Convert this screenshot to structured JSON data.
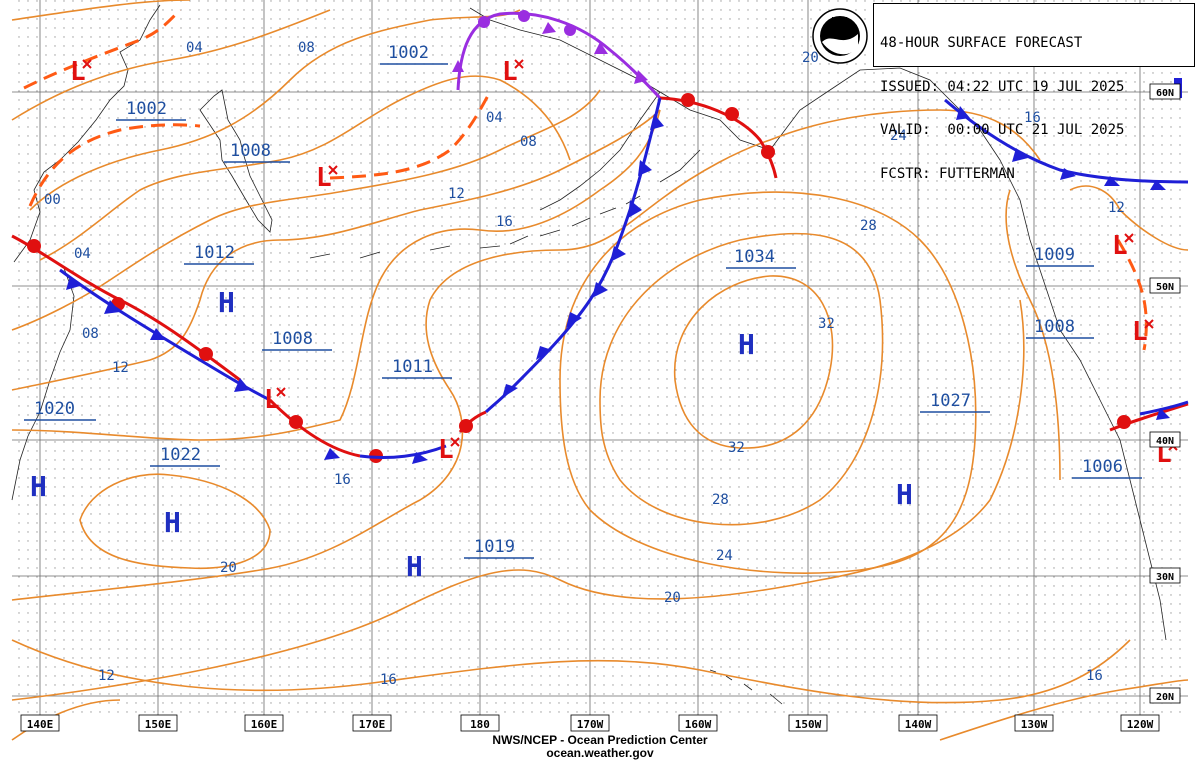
{
  "title": {
    "line1": "48-HOUR SURFACE FORECAST",
    "line2": "ISSUED: 04:22 UTC 19 JUL 2025",
    "line3": "VALID:  00:00 UTC 21 JUL 2025",
    "line4": "FCSTR: FUTTERMAN"
  },
  "logo_text": "NOAA",
  "footer": {
    "line1": "NWS/NCEP - Ocean Prediction Center",
    "line2": "ocean.weather.gov"
  },
  "longitude_labels": [
    "140E",
    "150E",
    "160E",
    "170E",
    "180",
    "170W",
    "160W",
    "150W",
    "140W",
    "130W",
    "120W"
  ],
  "latitude_labels": [
    "60N",
    "50N",
    "40N",
    "30N",
    "20N"
  ],
  "pressure_labels": [
    "1002",
    "1002",
    "1008",
    "1012",
    "1008",
    "1011",
    "1020",
    "1022",
    "1019",
    "1034",
    "1027",
    "1009",
    "1008",
    "1006"
  ],
  "isobar_labels": [
    "04",
    "08",
    "04",
    "08",
    "00",
    "04",
    "08",
    "12",
    "16",
    "12",
    "16",
    "20",
    "24",
    "28",
    "32",
    "32",
    "28",
    "24",
    "20",
    "16",
    "16",
    "12",
    "16",
    "12",
    "12",
    "20"
  ],
  "centers": [
    "H",
    "H",
    "H",
    "H",
    "H",
    "H",
    "L",
    "L",
    "L",
    "L",
    "L",
    "L",
    "L",
    "L"
  ],
  "colors": {
    "isobar": "#e88a2c",
    "grid": "#6a6a6a",
    "cold_front": "#1f1fd6",
    "warm_front": "#e01010",
    "occluded_front": "#9a2ee0",
    "trough": "#ff5a14",
    "high": "#1f2fc0",
    "low": "#e01010",
    "label": "#1f4fa0"
  }
}
